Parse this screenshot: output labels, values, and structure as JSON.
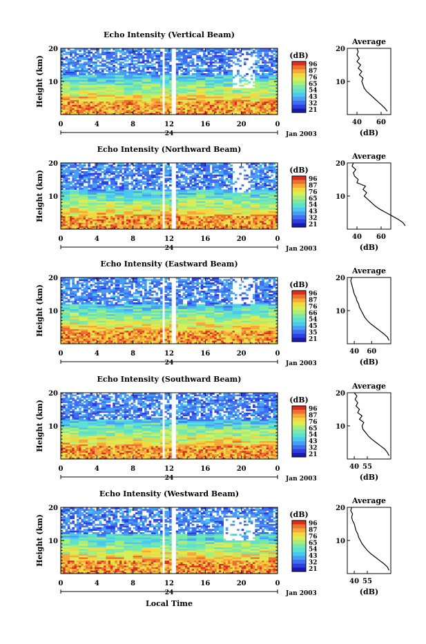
{
  "chart_data": {
    "type": "heatmap",
    "panels": [
      {
        "title": "Echo Intensity (Vertical Beam)",
        "avg_profile": [
          [
            65,
            1
          ],
          [
            63,
            2
          ],
          [
            60,
            3
          ],
          [
            57,
            4
          ],
          [
            54,
            5
          ],
          [
            51,
            6
          ],
          [
            48,
            7
          ],
          [
            46,
            8
          ],
          [
            45,
            9
          ],
          [
            44,
            10
          ],
          [
            45,
            11
          ],
          [
            42,
            12
          ],
          [
            44,
            13
          ],
          [
            41,
            14
          ],
          [
            43,
            15
          ],
          [
            40,
            16
          ],
          [
            42,
            17
          ],
          [
            40,
            18
          ],
          [
            41,
            19
          ],
          [
            40,
            20
          ]
        ],
        "avg_xticks": [
          40,
          60
        ],
        "gaps": [
          [
            11.2,
            11.6
          ],
          [
            12.3,
            12.8
          ]
        ],
        "white_patch": [
          19,
          21.5,
          8,
          18
        ]
      },
      {
        "title": "Echo Intensity (Northward Beam)",
        "avg_profile": [
          [
            80,
            1
          ],
          [
            78,
            2
          ],
          [
            74,
            3
          ],
          [
            69,
            4
          ],
          [
            64,
            5
          ],
          [
            59,
            6
          ],
          [
            55,
            7
          ],
          [
            52,
            8
          ],
          [
            49,
            9
          ],
          [
            46,
            10
          ],
          [
            48,
            11
          ],
          [
            45,
            12
          ],
          [
            47,
            13
          ],
          [
            40,
            14
          ],
          [
            41,
            15
          ],
          [
            38,
            16
          ],
          [
            37,
            17
          ],
          [
            39,
            18
          ],
          [
            36,
            19
          ],
          [
            37,
            20
          ]
        ],
        "avg_xticks": [
          40,
          60
        ],
        "gaps": [
          [
            11.2,
            11.6
          ],
          [
            12.3,
            12.8
          ]
        ],
        "white_patch": [
          19,
          21,
          11,
          20
        ]
      },
      {
        "title": "Echo Intensity (Eastward Beam)",
        "avg_profile": [
          [
            80,
            1
          ],
          [
            78,
            2
          ],
          [
            74,
            3
          ],
          [
            69,
            4
          ],
          [
            64,
            5
          ],
          [
            59,
            6
          ],
          [
            55,
            7
          ],
          [
            52,
            8
          ],
          [
            50,
            9
          ],
          [
            48,
            10
          ],
          [
            46,
            11
          ],
          [
            45,
            12
          ],
          [
            43,
            13
          ],
          [
            42,
            14
          ],
          [
            40,
            15
          ],
          [
            39,
            16
          ],
          [
            38,
            17
          ],
          [
            37,
            18
          ],
          [
            36,
            19
          ],
          [
            37,
            20
          ]
        ],
        "avg_xticks": [
          40,
          60
        ],
        "gaps": [
          [
            11.2,
            11.6
          ],
          [
            12.3,
            12.8
          ]
        ],
        "white_patch": [
          19,
          21.5,
          12,
          20
        ]
      },
      {
        "title": "Echo Intensity (Southward Beam)",
        "avg_profile": [
          [
            80,
            1
          ],
          [
            78,
            2
          ],
          [
            75,
            3
          ],
          [
            70,
            4
          ],
          [
            65,
            5
          ],
          [
            60,
            6
          ],
          [
            56,
            7
          ],
          [
            53,
            8
          ],
          [
            50,
            9
          ],
          [
            49,
            10
          ],
          [
            51,
            11
          ],
          [
            46,
            12
          ],
          [
            49,
            13
          ],
          [
            44,
            14
          ],
          [
            46,
            15
          ],
          [
            42,
            16
          ],
          [
            44,
            17
          ],
          [
            41,
            18
          ],
          [
            43,
            19
          ],
          [
            40,
            20
          ]
        ],
        "avg_xticks": [
          40,
          55
        ],
        "gaps": [
          [
            11.2,
            11.6
          ],
          [
            12.3,
            12.8
          ]
        ],
        "white_patch": [
          0,
          0,
          0,
          0
        ]
      },
      {
        "title": "Echo Intensity (Westward Beam)",
        "avg_profile": [
          [
            80,
            1
          ],
          [
            78,
            2
          ],
          [
            74,
            3
          ],
          [
            69,
            4
          ],
          [
            64,
            5
          ],
          [
            59,
            6
          ],
          [
            55,
            7
          ],
          [
            52,
            8
          ],
          [
            49,
            9
          ],
          [
            47,
            10
          ],
          [
            45,
            11
          ],
          [
            44,
            12
          ],
          [
            42,
            13
          ],
          [
            41,
            14
          ],
          [
            40,
            15
          ],
          [
            38,
            16
          ],
          [
            37,
            17
          ],
          [
            38,
            18
          ],
          [
            36,
            19
          ],
          [
            37,
            20
          ]
        ],
        "avg_xticks": [
          40,
          55
        ],
        "gaps": [
          [
            11.2,
            11.6
          ],
          [
            12.3,
            12.8
          ]
        ],
        "white_patch": [
          18,
          21.5,
          10,
          17
        ]
      }
    ],
    "xlabel": "Local Time",
    "ylabel": "Height (km)",
    "xticks": [
      "0",
      "4",
      "8",
      "12",
      "16",
      "20",
      "0"
    ],
    "xlim": [
      0,
      24
    ],
    "ylim": [
      0,
      20
    ],
    "yticks": [
      10,
      20
    ],
    "date_tick": "24",
    "date_label": "Jan 2003",
    "colorbar_unit": "(dB)",
    "colorbar_ticks": [
      "96",
      "87",
      "76",
      "65",
      "54",
      "43",
      "32",
      "21"
    ],
    "colorbar_ticks_alt": [
      "96",
      "87",
      "76",
      "66",
      "54",
      "45",
      "35",
      "21"
    ],
    "avg_title": "Average",
    "avg_xlabel": "(dB)",
    "avg_yticks": [
      10,
      20
    ]
  }
}
